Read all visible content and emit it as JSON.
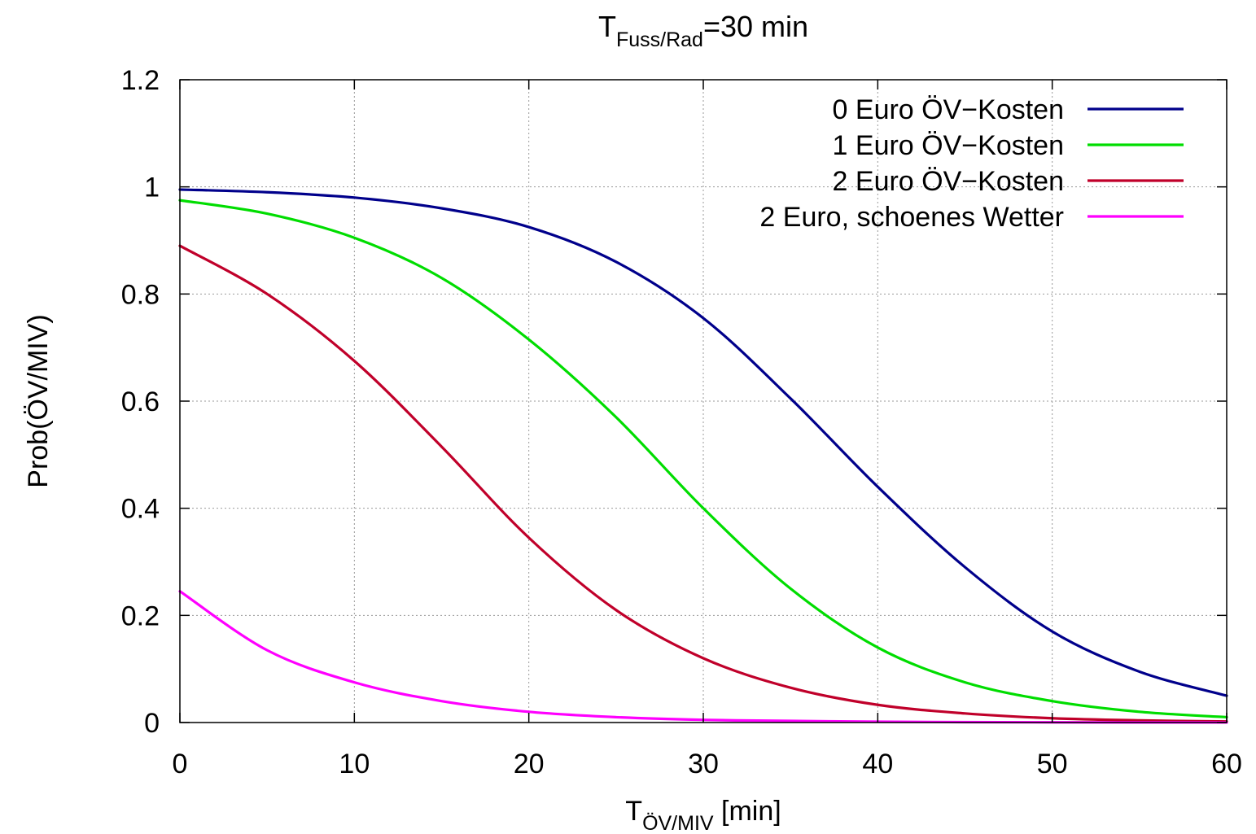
{
  "chart_data": {
    "type": "line",
    "title": {
      "base": "T",
      "sub": "Fuss/Rad",
      "rest": "=30 min"
    },
    "xlabel": {
      "base": "T",
      "sub": "ÖV/MIV",
      "rest": " [min]"
    },
    "ylabel": "Prob(ÖV/MIV)",
    "xlim": [
      0,
      60
    ],
    "ylim": [
      0,
      1.2
    ],
    "xticks": [
      0,
      10,
      20,
      30,
      40,
      50,
      60
    ],
    "yticks": [
      0,
      0.2,
      0.4,
      0.6,
      0.8,
      1,
      1.2
    ],
    "grid": true,
    "legend_position": "top-right",
    "x": [
      0,
      5,
      10,
      15,
      20,
      25,
      30,
      35,
      40,
      45,
      50,
      55,
      60
    ],
    "series": [
      {
        "name": "0 Euro ÖV−Kosten",
        "color": "#00008b",
        "values": [
          0.995,
          0.99,
          0.98,
          0.96,
          0.925,
          0.86,
          0.755,
          0.605,
          0.44,
          0.29,
          0.17,
          0.095,
          0.05
        ]
      },
      {
        "name": "1 Euro ÖV−Kosten",
        "color": "#00dd00",
        "values": [
          0.975,
          0.95,
          0.905,
          0.83,
          0.715,
          0.57,
          0.4,
          0.25,
          0.14,
          0.075,
          0.04,
          0.02,
          0.01
        ]
      },
      {
        "name": "2 Euro ÖV−Kosten",
        "color": "#c0002a",
        "values": [
          0.89,
          0.8,
          0.675,
          0.515,
          0.345,
          0.21,
          0.12,
          0.065,
          0.033,
          0.017,
          0.008,
          0.004,
          0.002
        ]
      },
      {
        "name": "2 Euro, schoenes Wetter",
        "color": "#ff00ff",
        "values": [
          0.245,
          0.135,
          0.075,
          0.04,
          0.02,
          0.01,
          0.005,
          0.003,
          0.0015,
          0.0008,
          0.0004,
          0.0002,
          0.0001
        ]
      }
    ]
  }
}
